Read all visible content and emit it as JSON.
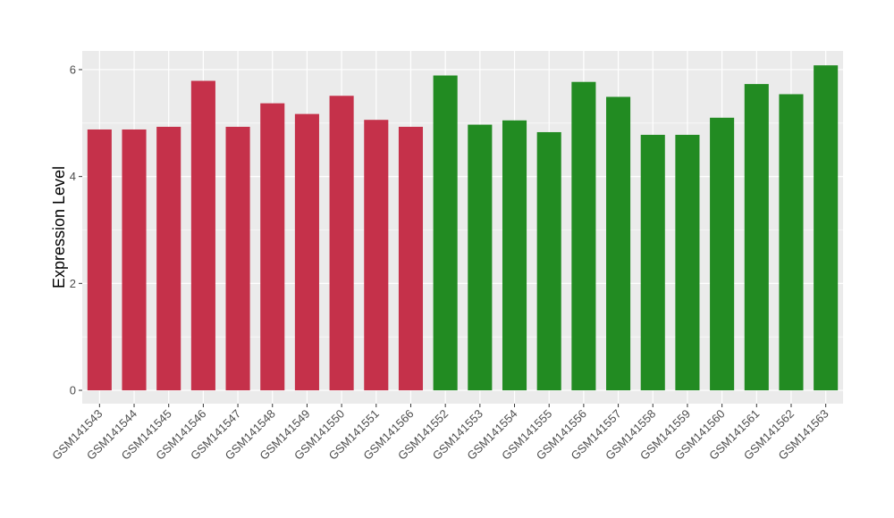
{
  "chart_data": {
    "type": "bar",
    "title": "",
    "xlabel": "",
    "ylabel": "Expression Level",
    "ylim": [
      -0.25,
      6.35
    ],
    "yticks": [
      0,
      2,
      4,
      6
    ],
    "grid": true,
    "legend": "none",
    "categories": [
      "GSM141543",
      "GSM141544",
      "GSM141545",
      "GSM141546",
      "GSM141547",
      "GSM141548",
      "GSM141549",
      "GSM141550",
      "GSM141551",
      "GSM141566",
      "GSM141552",
      "GSM141553",
      "GSM141554",
      "GSM141555",
      "GSM141556",
      "GSM141557",
      "GSM141558",
      "GSM141559",
      "GSM141560",
      "GSM141561",
      "GSM141562",
      "GSM141563"
    ],
    "values": [
      4.88,
      4.88,
      4.93,
      5.79,
      4.93,
      5.37,
      5.17,
      5.51,
      5.06,
      4.93,
      5.89,
      4.97,
      5.05,
      4.83,
      5.77,
      5.49,
      4.78,
      4.78,
      5.1,
      5.73,
      5.54,
      6.08
    ],
    "groups": [
      "red",
      "red",
      "red",
      "red",
      "red",
      "red",
      "red",
      "red",
      "red",
      "red",
      "green",
      "green",
      "green",
      "green",
      "green",
      "green",
      "green",
      "green",
      "green",
      "green",
      "green",
      "green"
    ],
    "colors": {
      "red": "#c5314a",
      "green": "#228b22",
      "panel": "#ebebeb",
      "grid": "#ffffff"
    }
  }
}
